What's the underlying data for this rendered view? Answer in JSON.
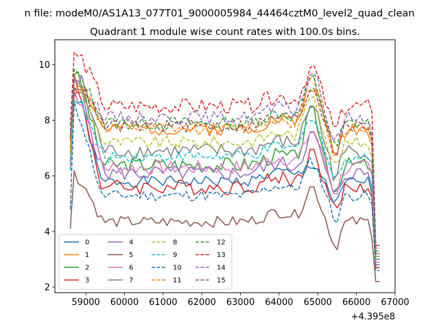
{
  "chart_data": {
    "type": "line",
    "suptitle": "n file: modeM0/AS1A13_077T01_9000005984_44464cztM0_level2_quad_clean",
    "title": "Quadrant 1 module wise count rates with 100.0s bins.",
    "xlabel": "",
    "ylabel": "",
    "x_offset_label": "+4.395e8",
    "x_offset": 439500000,
    "xlim": [
      58200,
      67000
    ],
    "ylim": [
      1.8,
      10.9
    ],
    "x_ticks": [
      59000,
      60000,
      61000,
      62000,
      63000,
      64000,
      65000,
      66000,
      67000
    ],
    "x_tick_labels": [
      "59000",
      "60000",
      "61000",
      "62000",
      "63000",
      "64000",
      "65000",
      "66000",
      "67000"
    ],
    "y_ticks": [
      2,
      4,
      6,
      8,
      10
    ],
    "y_tick_labels": [
      "2",
      "4",
      "6",
      "8",
      "10"
    ],
    "grid": false,
    "legend_placement": "lower-left",
    "legend_columns": 4,
    "bin_seconds": 100,
    "x_start": 58600,
    "x_end": 66600,
    "series": [
      {
        "name": "0",
        "color": "#1f77b4",
        "dash": "solid",
        "start": 6.5,
        "peak": 9.0,
        "base": 5.8,
        "early_bump": 0.0,
        "late_peak": 6.4,
        "end": 2.8,
        "noise": 0.2,
        "seed": 1
      },
      {
        "name": "1",
        "color": "#ff7f0e",
        "dash": "solid",
        "start": 6.8,
        "peak": 9.7,
        "base": 7.7,
        "early_bump": 0.1,
        "late_peak": 9.3,
        "end": 3.2,
        "noise": 0.25,
        "seed": 2
      },
      {
        "name": "2",
        "color": "#2ca02c",
        "dash": "solid",
        "start": 7.0,
        "peak": 9.8,
        "base": 6.4,
        "early_bump": 0.2,
        "late_peak": 8.3,
        "end": 3.0,
        "noise": 0.28,
        "seed": 3
      },
      {
        "name": "3",
        "color": "#d62728",
        "dash": "solid",
        "start": 6.2,
        "peak": 9.2,
        "base": 5.6,
        "early_bump": 0.1,
        "late_peak": 6.8,
        "end": 2.7,
        "noise": 0.28,
        "seed": 4
      },
      {
        "name": "4",
        "color": "#9467bd",
        "dash": "solid",
        "start": 6.4,
        "peak": 9.4,
        "base": 6.1,
        "early_bump": 0.2,
        "late_peak": 7.5,
        "end": 2.8,
        "noise": 0.28,
        "seed": 5
      },
      {
        "name": "5",
        "color": "#8c564b",
        "dash": "solid",
        "start": 4.1,
        "peak": 6.1,
        "base": 4.35,
        "early_bump": 0.1,
        "late_peak": 5.6,
        "end": 2.2,
        "noise": 0.2,
        "seed": 6
      },
      {
        "name": "6",
        "color": "#e377c2",
        "dash": "solid",
        "start": 6.3,
        "peak": 9.1,
        "base": 6.3,
        "early_bump": 0.2,
        "late_peak": 7.6,
        "end": 2.9,
        "noise": 0.26,
        "seed": 7
      },
      {
        "name": "7",
        "color": "#7f7f7f",
        "dash": "solid",
        "start": 6.9,
        "peak": 9.5,
        "base": 6.9,
        "early_bump": 0.3,
        "late_peak": 8.6,
        "end": 3.1,
        "noise": 0.28,
        "seed": 8
      },
      {
        "name": "8",
        "color": "#bcbd22",
        "dash": "dashed",
        "start": 6.7,
        "peak": 9.3,
        "base": 7.2,
        "early_bump": 0.2,
        "late_peak": 9.0,
        "end": 3.1,
        "noise": 0.22,
        "seed": 9
      },
      {
        "name": "9",
        "color": "#17becf",
        "dash": "dashed",
        "start": 6.2,
        "peak": 8.9,
        "base": 6.7,
        "early_bump": 0.1,
        "late_peak": 8.2,
        "end": 3.0,
        "noise": 0.22,
        "seed": 10
      },
      {
        "name": "10",
        "color": "#1f77b4",
        "dash": "dashed",
        "start": 4.8,
        "peak": 8.5,
        "base": 5.3,
        "early_bump": 0.0,
        "late_peak": 6.5,
        "end": 2.6,
        "noise": 0.2,
        "seed": 11
      },
      {
        "name": "11",
        "color": "#ff7f0e",
        "dash": "dashed",
        "start": 7.0,
        "peak": 9.5,
        "base": 7.7,
        "early_bump": 0.2,
        "late_peak": 9.4,
        "end": 3.3,
        "noise": 0.22,
        "seed": 12
      },
      {
        "name": "12",
        "color": "#2ca02c",
        "dash": "dashed",
        "start": 7.4,
        "peak": 9.8,
        "base": 7.9,
        "early_bump": 0.2,
        "late_peak": 9.5,
        "end": 3.3,
        "noise": 0.25,
        "seed": 13
      },
      {
        "name": "13",
        "color": "#d62728",
        "dash": "dashed",
        "start": 7.8,
        "peak": 10.5,
        "base": 8.5,
        "early_bump": 0.3,
        "late_peak": 9.9,
        "end": 3.5,
        "noise": 0.28,
        "seed": 14
      },
      {
        "name": "14",
        "color": "#9467bd",
        "dash": "dashed",
        "start": 7.6,
        "peak": 9.6,
        "base": 8.1,
        "early_bump": 0.2,
        "late_peak": 9.7,
        "end": 3.4,
        "noise": 0.24,
        "seed": 15
      },
      {
        "name": "15",
        "color": "#8c564b",
        "dash": "dashed",
        "start": 7.3,
        "peak": 9.4,
        "base": 7.8,
        "early_bump": 0.2,
        "late_peak": 9.2,
        "end": 3.2,
        "noise": 0.24,
        "seed": 16
      }
    ]
  }
}
